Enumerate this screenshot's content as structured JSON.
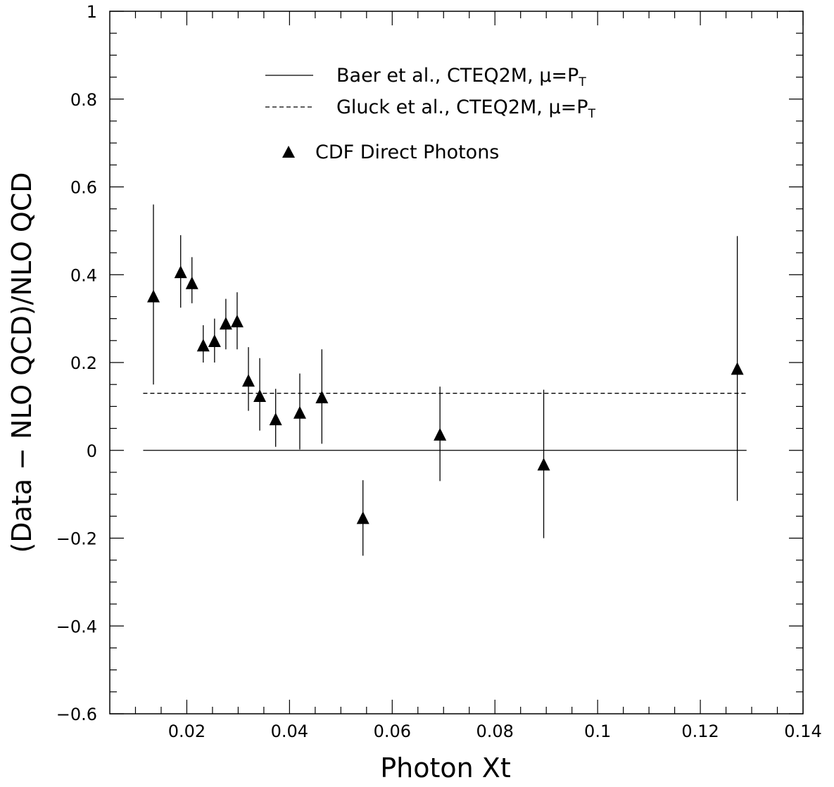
{
  "chart_data": {
    "type": "scatter",
    "title": "",
    "xlabel": "Photon Xt",
    "ylabel": "(Data − NLO QCD)/NLO QCD",
    "xlim": [
      0.005,
      0.14
    ],
    "ylim": [
      -0.6,
      1.0
    ],
    "xticks": [
      0.02,
      0.04,
      0.06,
      0.08,
      0.1,
      0.12,
      0.14
    ],
    "xtick_labels": [
      "0.02",
      "0.04",
      "0.06",
      "0.08",
      "0.1",
      "0.12",
      "0.14"
    ],
    "yticks": [
      -0.6,
      -0.4,
      -0.2,
      0,
      0.2,
      0.4,
      0.6,
      0.8,
      1.0
    ],
    "ytick_labels": [
      "−0.6",
      "−0.4",
      "−0.2",
      "0",
      "0.2",
      "0.4",
      "0.6",
      "0.8",
      "1"
    ],
    "grid": false,
    "legend_position": "top-center",
    "series": [
      {
        "name": "CDF Direct Photons",
        "kind": "points-with-errorbars",
        "marker": "filled-triangle",
        "color": "#000000",
        "points": [
          {
            "x": 0.0135,
            "y": 0.35,
            "ylow": 0.15,
            "yhigh": 0.56
          },
          {
            "x": 0.0188,
            "y": 0.405,
            "ylow": 0.325,
            "yhigh": 0.49
          },
          {
            "x": 0.021,
            "y": 0.38,
            "ylow": 0.335,
            "yhigh": 0.44
          },
          {
            "x": 0.0232,
            "y": 0.238,
            "ylow": 0.2,
            "yhigh": 0.285
          },
          {
            "x": 0.0254,
            "y": 0.248,
            "ylow": 0.2,
            "yhigh": 0.3
          },
          {
            "x": 0.0276,
            "y": 0.288,
            "ylow": 0.23,
            "yhigh": 0.345
          },
          {
            "x": 0.0298,
            "y": 0.293,
            "ylow": 0.23,
            "yhigh": 0.36
          },
          {
            "x": 0.032,
            "y": 0.158,
            "ylow": 0.09,
            "yhigh": 0.235
          },
          {
            "x": 0.0342,
            "y": 0.123,
            "ylow": 0.045,
            "yhigh": 0.21
          },
          {
            "x": 0.0373,
            "y": 0.07,
            "ylow": 0.008,
            "yhigh": 0.14
          },
          {
            "x": 0.042,
            "y": 0.085,
            "ylow": 0.002,
            "yhigh": 0.175
          },
          {
            "x": 0.0463,
            "y": 0.12,
            "ylow": 0.015,
            "yhigh": 0.23
          },
          {
            "x": 0.0543,
            "y": -0.155,
            "ylow": -0.24,
            "yhigh": -0.068
          },
          {
            "x": 0.0693,
            "y": 0.035,
            "ylow": -0.07,
            "yhigh": 0.145
          },
          {
            "x": 0.0895,
            "y": -0.033,
            "ylow": -0.2,
            "yhigh": 0.138
          },
          {
            "x": 0.1272,
            "y": 0.185,
            "ylow": -0.115,
            "yhigh": 0.488
          }
        ]
      },
      {
        "name": "Baer et al., CTEQ2M, μ=P",
        "name_subscript": "T",
        "kind": "line",
        "style": "solid",
        "color": "#000000",
        "x": [
          0.0115,
          0.129
        ],
        "y": [
          0.0,
          0.0
        ]
      },
      {
        "name": "Gluck et al., CTEQ2M, μ=P",
        "name_subscript": "T",
        "kind": "line",
        "style": "dashed",
        "color": "#000000",
        "x": [
          0.0115,
          0.129
        ],
        "y": [
          0.13,
          0.13
        ]
      }
    ]
  }
}
